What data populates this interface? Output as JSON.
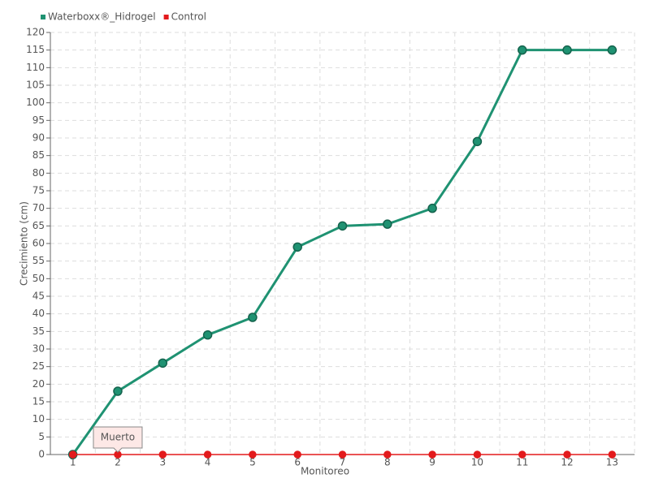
{
  "chart_data": {
    "type": "line",
    "x_label": "Monitoreo",
    "y_label": "Crecimiento (cm)",
    "categories": [
      "1",
      "2",
      "3",
      "4",
      "5",
      "6",
      "7",
      "8",
      "9",
      "10",
      "11",
      "12",
      "13"
    ],
    "series": [
      {
        "name": "Waterboxx®_Hidrogel",
        "color": "#1f9272",
        "values": [
          0,
          18,
          26,
          34,
          39,
          59,
          65,
          65.5,
          70,
          89,
          115,
          115,
          115
        ]
      },
      {
        "name": "Control",
        "color": "#e31a1c",
        "values": [
          0,
          0,
          0,
          0,
          0,
          0,
          0,
          0,
          0,
          0,
          0,
          0,
          0
        ]
      }
    ],
    "annotation": "Muerto",
    "ylim": [
      0,
      120
    ],
    "yticks": [
      0,
      5,
      10,
      15,
      20,
      25,
      30,
      35,
      40,
      45,
      50,
      55,
      60,
      65,
      70,
      75,
      80,
      85,
      90,
      95,
      100,
      105,
      110,
      115,
      120
    ],
    "grid": true,
    "legend": "top-left"
  }
}
